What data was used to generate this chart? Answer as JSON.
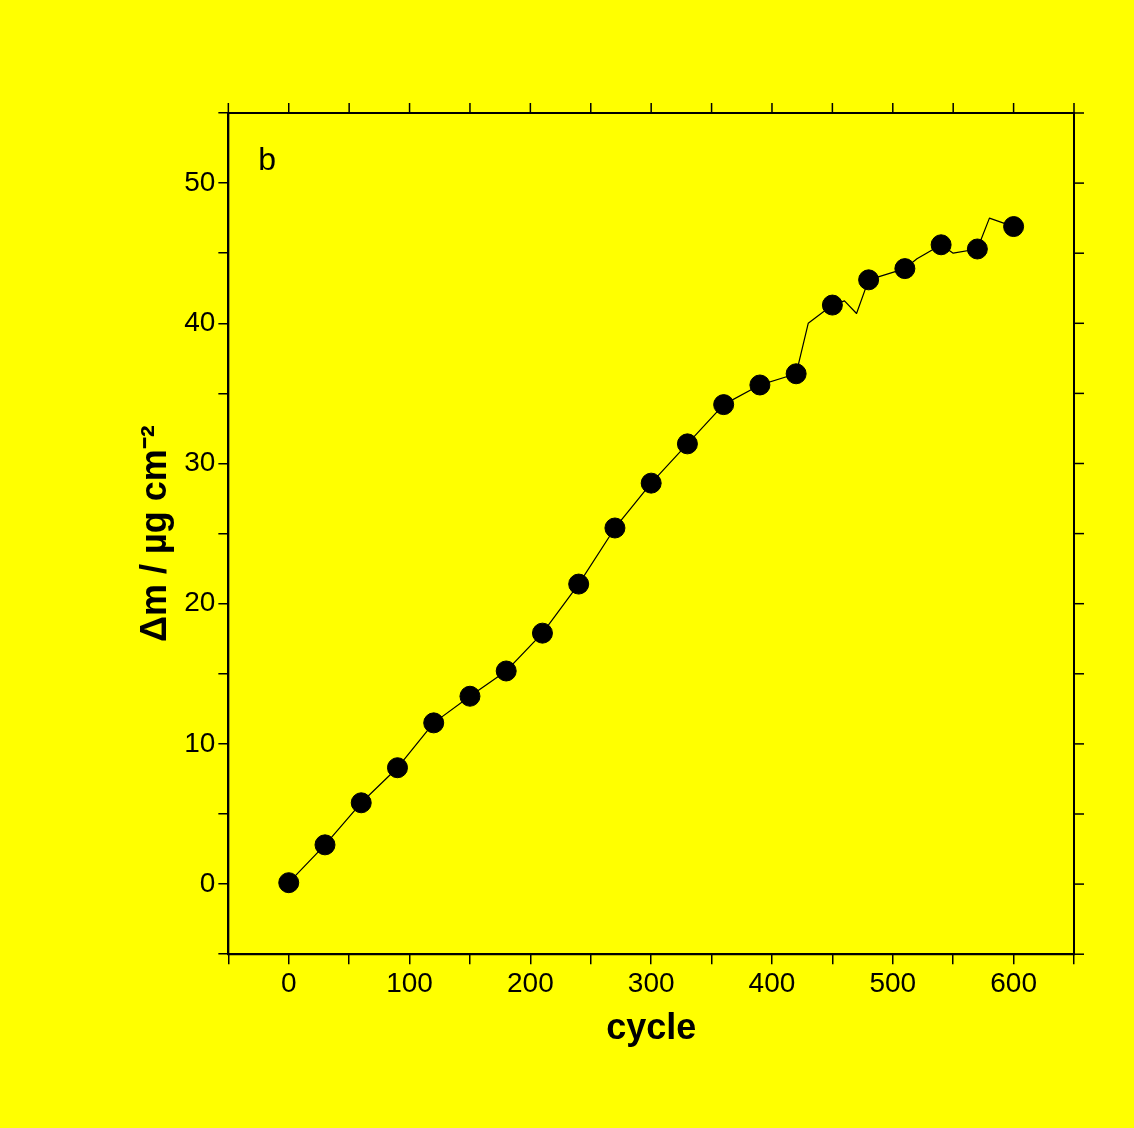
{
  "chart_data": {
    "type": "line",
    "xlabel": "cycle",
    "ylabel": "Δm / µg cm⁻²",
    "annotations": [
      "b"
    ],
    "xlim": [
      -50,
      650
    ],
    "xticks": [
      {
        "value": -50,
        "label": null
      },
      0,
      {
        "value": 50,
        "label": null
      },
      100,
      {
        "value": 150,
        "label": null
      },
      200,
      {
        "value": 250,
        "label": null
      },
      300,
      {
        "value": 350,
        "label": null
      },
      400,
      {
        "value": 450,
        "label": null
      },
      500,
      {
        "value": 550,
        "label": null
      },
      600,
      {
        "value": 650,
        "label": null
      }
    ],
    "ylim": [
      -5,
      55
    ],
    "yticks": [
      {
        "value": -5,
        "label": null
      },
      0,
      {
        "value": 5,
        "label": null
      },
      10,
      {
        "value": 15,
        "label": null
      },
      20,
      {
        "value": 25,
        "label": null
      },
      30,
      {
        "value": 35,
        "label": null
      },
      40,
      {
        "value": 45,
        "label": null
      },
      50,
      {
        "value": 55,
        "label": null
      }
    ],
    "grid": false,
    "legend": false,
    "line_style": "solid",
    "series": [
      {
        "marker": "none",
        "color": "#000000",
        "x": [
          0,
          30,
          60,
          90,
          120,
          150,
          180,
          210,
          240,
          270,
          300,
          330,
          360,
          390,
          420,
          430,
          450,
          460,
          470,
          480,
          510,
          520,
          540,
          550,
          570,
          580,
          600
        ],
        "values": [
          0.1,
          2.8,
          5.8,
          8.3,
          11.5,
          13.4,
          15.2,
          17.9,
          21.4,
          25.4,
          28.6,
          31.4,
          34.2,
          35.6,
          36.4,
          40.0,
          41.3,
          41.6,
          40.7,
          43.1,
          43.9,
          44.6,
          45.6,
          45.0,
          45.3,
          47.5,
          46.9
        ]
      },
      {
        "type": "scatter",
        "marker": "circle",
        "color": "#000000",
        "x": [
          0,
          30,
          60,
          90,
          120,
          150,
          180,
          210,
          240,
          270,
          300,
          330,
          360,
          390,
          420,
          450,
          480,
          510,
          540,
          570,
          600
        ],
        "values": [
          0.1,
          2.8,
          5.8,
          8.3,
          11.5,
          13.4,
          15.2,
          17.9,
          21.4,
          25.4,
          28.6,
          31.4,
          34.2,
          35.6,
          36.4,
          41.3,
          43.1,
          43.9,
          45.6,
          45.3,
          46.9
        ]
      }
    ]
  }
}
